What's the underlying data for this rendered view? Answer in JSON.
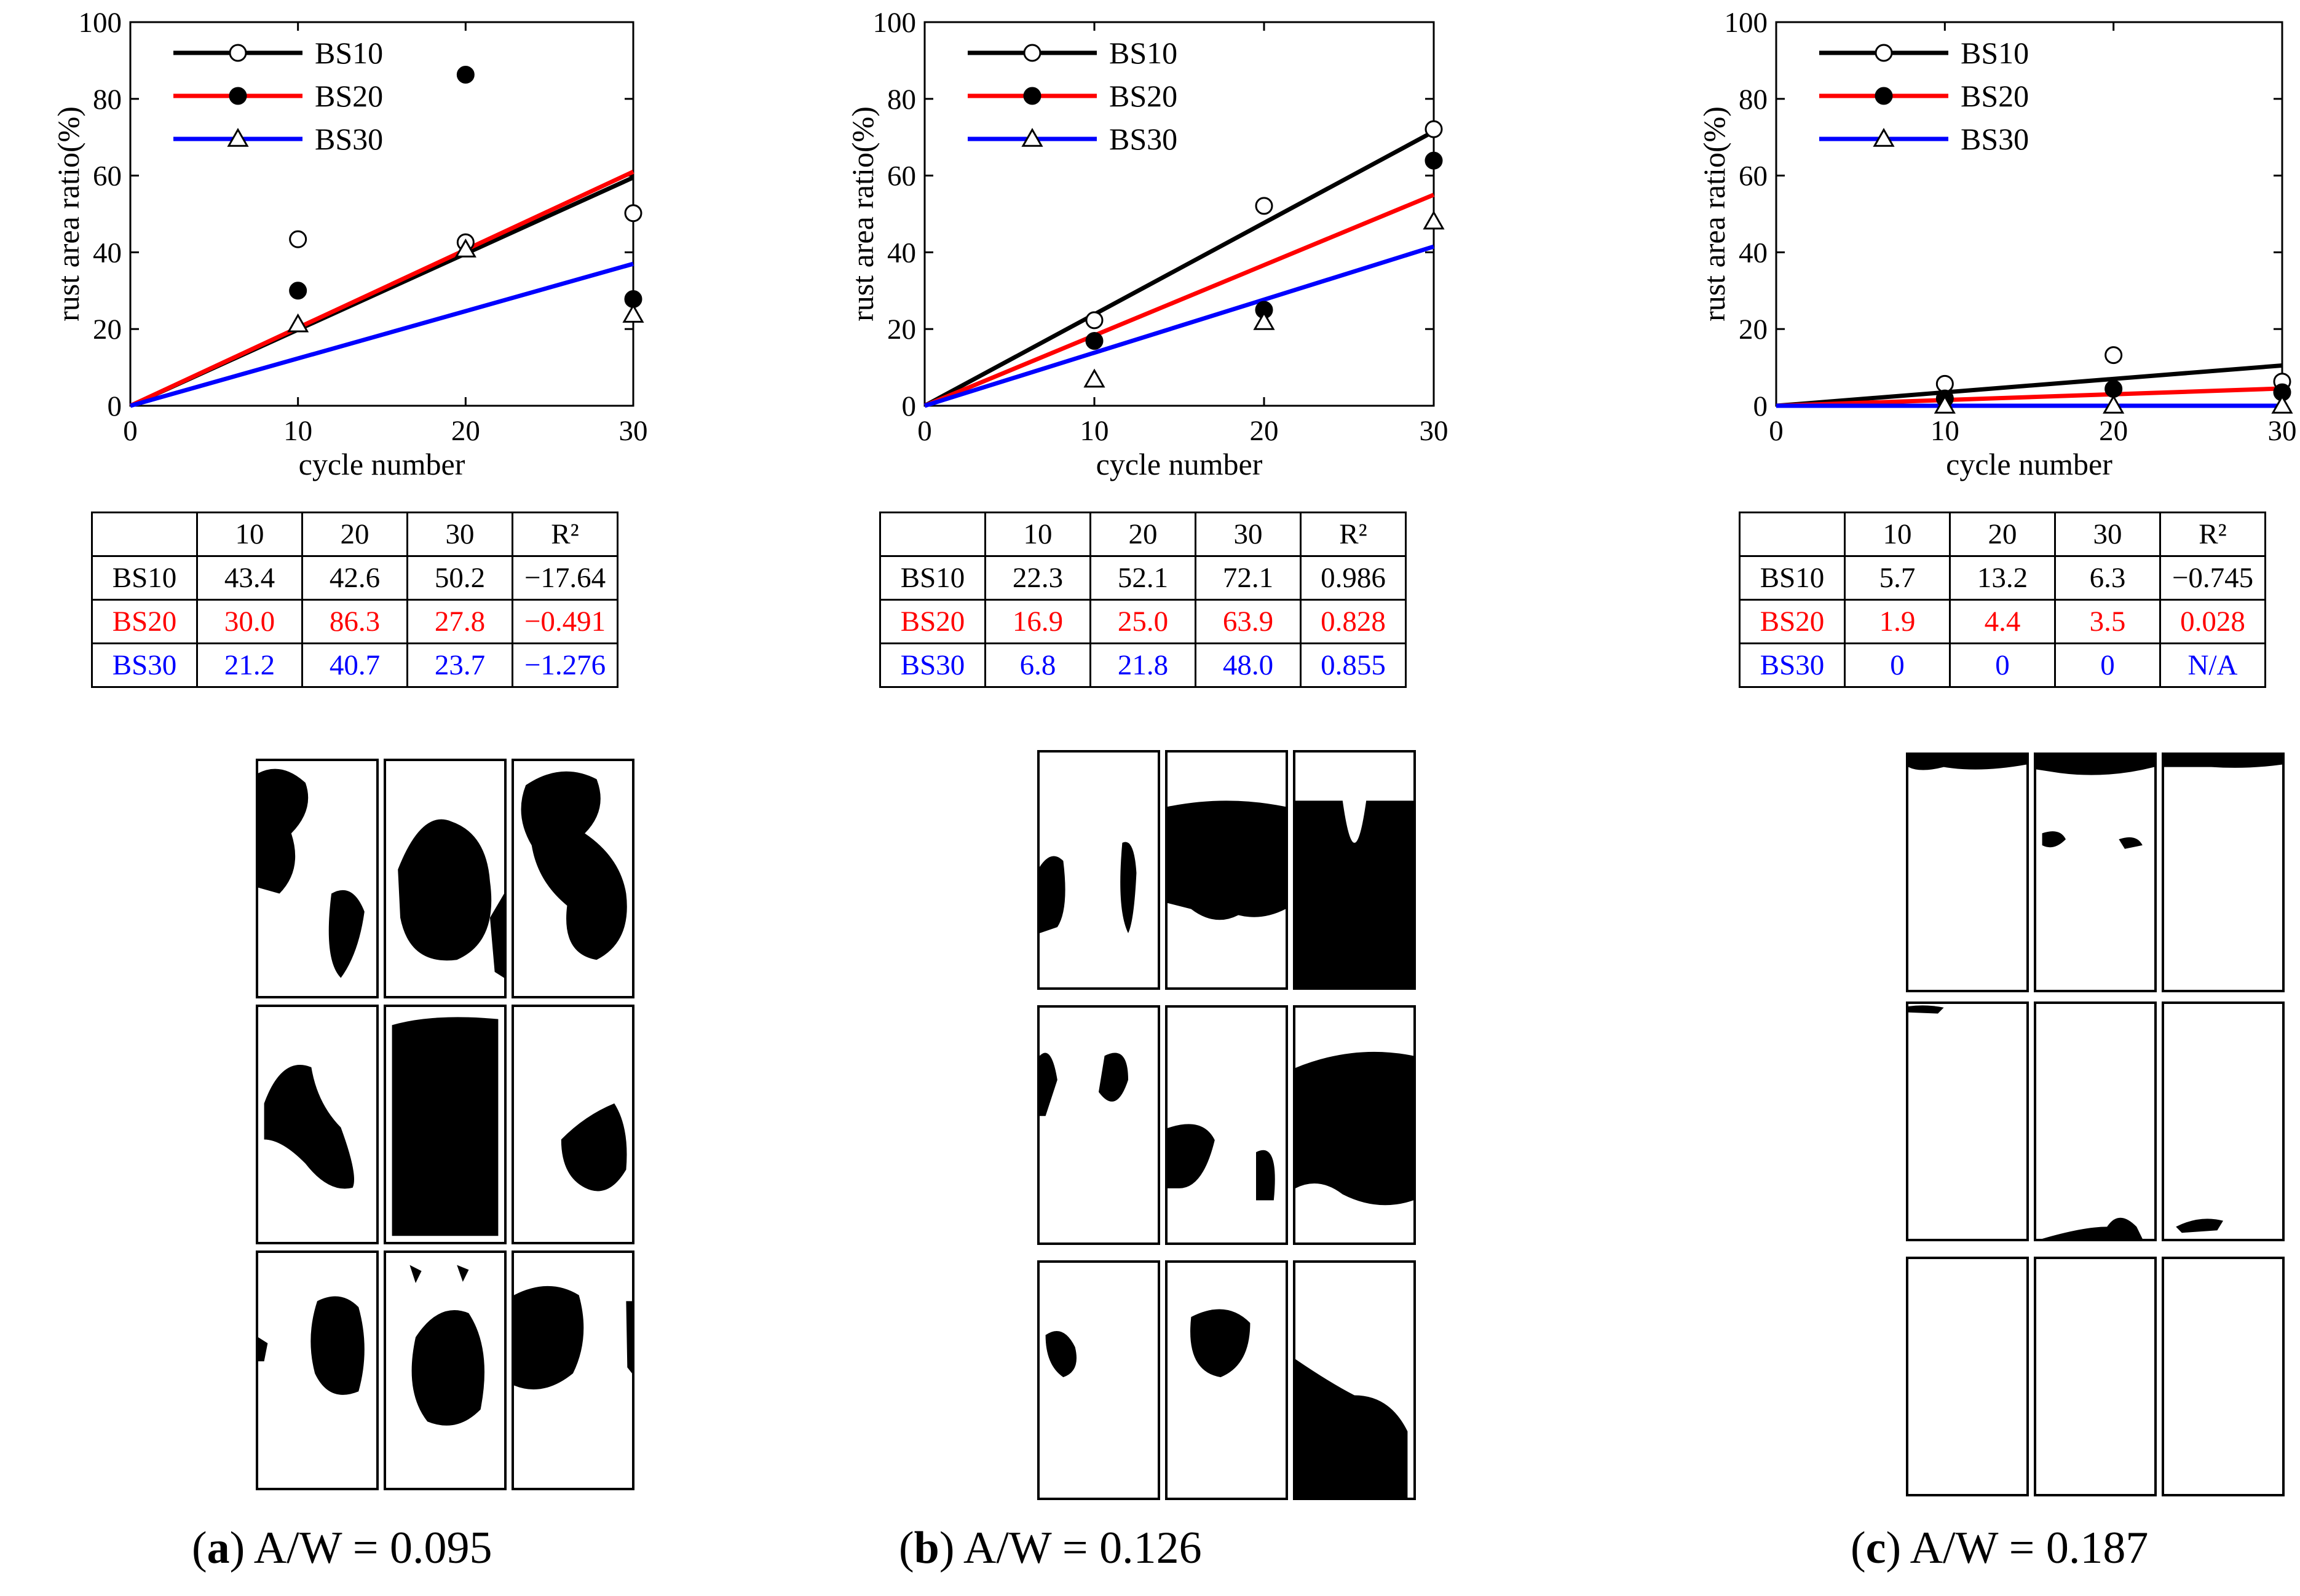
{
  "chart_data": [
    {
      "type": "scatter",
      "panel_id": "a",
      "xlabel": "cycle number",
      "ylabel": "rust area ratio(%)",
      "xlim": [
        0,
        30
      ],
      "ylim": [
        0,
        100
      ],
      "xticks": [
        0,
        10,
        20,
        30
      ],
      "yticks": [
        0,
        20,
        40,
        60,
        80,
        100
      ],
      "legend_position": "top-left",
      "x": [
        10,
        20,
        30
      ],
      "series": [
        {
          "name": "BS10",
          "color": "#000000",
          "marker": "open-circle",
          "values": [
            43.4,
            42.6,
            50.2
          ],
          "fit_end": 59.5
        },
        {
          "name": "BS20",
          "color": "#ff0000",
          "marker": "filled-circle",
          "values": [
            30.0,
            86.3,
            27.8
          ],
          "fit_end": 61.0
        },
        {
          "name": "BS30",
          "color": "#0000ff",
          "marker": "open-triangle",
          "values": [
            21.2,
            40.7,
            23.7
          ],
          "fit_end": 37.0
        }
      ]
    },
    {
      "type": "scatter",
      "panel_id": "b",
      "xlabel": "cycle number",
      "ylabel": "rust area ratio(%)",
      "xlim": [
        0,
        30
      ],
      "ylim": [
        0,
        100
      ],
      "xticks": [
        0,
        10,
        20,
        30
      ],
      "yticks": [
        0,
        20,
        40,
        60,
        80,
        100
      ],
      "legend_position": "top-left",
      "x": [
        10,
        20,
        30
      ],
      "series": [
        {
          "name": "BS10",
          "color": "#000000",
          "marker": "open-circle",
          "values": [
            22.3,
            52.1,
            72.1
          ],
          "fit_end": 71.5
        },
        {
          "name": "BS20",
          "color": "#ff0000",
          "marker": "filled-circle",
          "values": [
            16.9,
            25.0,
            63.9
          ],
          "fit_end": 55.0
        },
        {
          "name": "BS30",
          "color": "#0000ff",
          "marker": "open-triangle",
          "values": [
            6.8,
            21.8,
            48.0
          ],
          "fit_end": 41.5
        }
      ]
    },
    {
      "type": "scatter",
      "panel_id": "c",
      "xlabel": "cycle number",
      "ylabel": "rust area ratio(%)",
      "xlim": [
        0,
        30
      ],
      "ylim": [
        0,
        100
      ],
      "xticks": [
        0,
        10,
        20,
        30
      ],
      "yticks": [
        0,
        20,
        40,
        60,
        80,
        100
      ],
      "legend_position": "top-left",
      "x": [
        10,
        20,
        30
      ],
      "series": [
        {
          "name": "BS10",
          "color": "#000000",
          "marker": "open-circle",
          "values": [
            5.7,
            13.2,
            6.3
          ],
          "fit_end": 10.5
        },
        {
          "name": "BS20",
          "color": "#ff0000",
          "marker": "filled-circle",
          "values": [
            1.9,
            4.4,
            3.5
          ],
          "fit_end": 4.5
        },
        {
          "name": "BS30",
          "color": "#0000ff",
          "marker": "open-triangle",
          "values": [
            0,
            0,
            0
          ],
          "fit_end": 0
        }
      ]
    }
  ],
  "tables": [
    {
      "header": [
        "",
        "10",
        "20",
        "30",
        "R²"
      ],
      "rows": [
        {
          "name": "BS10",
          "cells": [
            "43.4",
            "42.6",
            "50.2",
            "−17.64"
          ]
        },
        {
          "name": "BS20",
          "cells": [
            "30.0",
            "86.3",
            "27.8",
            "−0.491"
          ]
        },
        {
          "name": "BS30",
          "cells": [
            "21.2",
            "40.7",
            "23.7",
            "−1.276"
          ]
        }
      ]
    },
    {
      "header": [
        "",
        "10",
        "20",
        "30",
        "R²"
      ],
      "rows": [
        {
          "name": "BS10",
          "cells": [
            "22.3",
            "52.1",
            "72.1",
            "0.986"
          ]
        },
        {
          "name": "BS20",
          "cells": [
            "16.9",
            "25.0",
            "63.9",
            "0.828"
          ]
        },
        {
          "name": "BS30",
          "cells": [
            "6.8",
            "21.8",
            "48.0",
            "0.855"
          ]
        }
      ]
    },
    {
      "header": [
        "",
        "10",
        "20",
        "30",
        "R²"
      ],
      "rows": [
        {
          "name": "BS10",
          "cells": [
            "5.7",
            "13.2",
            "6.3",
            "−0.745"
          ]
        },
        {
          "name": "BS20",
          "cells": [
            "1.9",
            "4.4",
            "3.5",
            "0.028"
          ]
        },
        {
          "name": "BS30",
          "cells": [
            "0",
            "0",
            "0",
            "N/A"
          ]
        }
      ]
    }
  ],
  "captions": [
    {
      "letter": "a",
      "text": "A/W = 0.095"
    },
    {
      "letter": "b",
      "text": "A/W = 0.126"
    },
    {
      "letter": "c",
      "text": "A/W = 0.187"
    }
  ],
  "row_colors": [
    "#000000",
    "#ff0000",
    "#0000ff"
  ]
}
